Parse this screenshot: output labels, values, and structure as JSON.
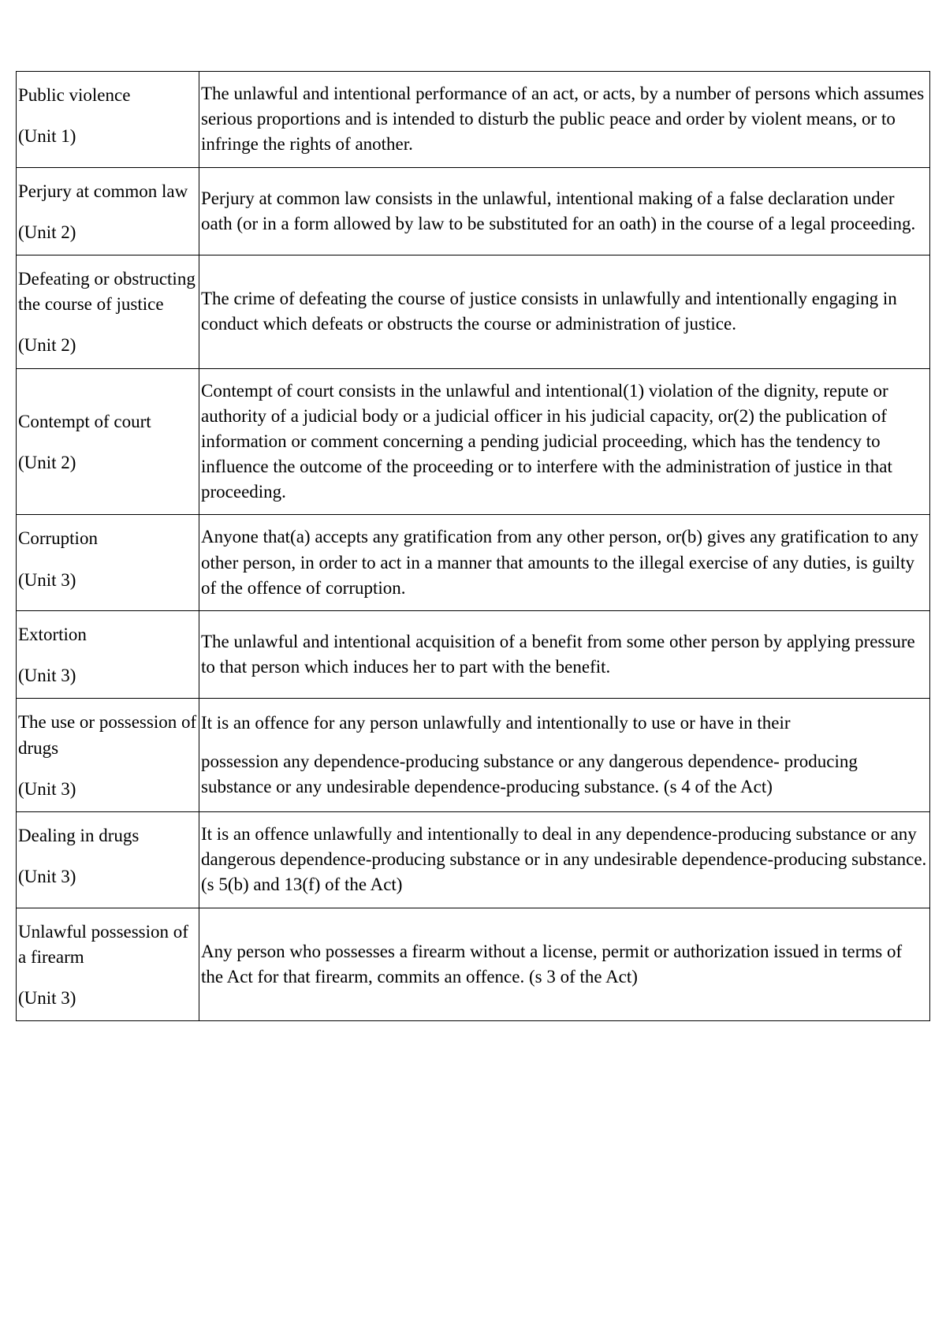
{
  "table": {
    "columns": [
      "term",
      "definition"
    ],
    "column_widths": [
      "232px",
      "auto"
    ],
    "border_color": "#000000",
    "font_family": "Times New Roman",
    "font_size": 23,
    "text_color": "#000000",
    "background_color": "#ffffff",
    "rows": [
      {
        "term_name": "Public violence",
        "term_unit": "(Unit 1)",
        "definition": "The unlawful and intentional performance of an act, or acts, by a number of persons which assumes serious proportions and is intended to disturb the public peace and order by violent means, or to infringe the rights of another."
      },
      {
        "term_name": "Perjury at common law",
        "term_unit": "(Unit 2)",
        "definition": "Perjury at common law consists in the unlawful, intentional making of a false declaration under oath (or in a form allowed by law to be substituted for an oath) in the course of a legal proceeding."
      },
      {
        "term_name": "Defeating or obstructing the course of justice",
        "term_unit": "(Unit 2)",
        "definition": "The crime of defeating the course of justice consists in unlawfully and intentionally engaging in conduct which defeats or obstructs the course or administration of justice."
      },
      {
        "term_name": "Contempt of court",
        "term_unit": "(Unit 2)",
        "definition": "Contempt of court consists in the unlawful and intentional(1) violation of the dignity, repute or authority of a judicial body or a judicial officer in his judicial capacity, or(2) the publication of information or comment concerning a pending judicial proceeding, which has the tendency to influence the outcome of the proceeding or to interfere with the administration of justice in that proceeding."
      },
      {
        "term_name": "Corruption",
        "term_unit": "(Unit 3)",
        "definition": "Anyone that(a) accepts any gratification from any other person, or(b) gives any gratification to any other person, in order to act in a manner that amounts to the illegal exercise of any duties, is guilty of the offence of corruption."
      },
      {
        "term_name": "Extortion",
        "term_unit": "(Unit 3)",
        "definition": "The unlawful and intentional acquisition of a benefit from some other person by applying pressure to that person which induces her to part with the benefit."
      },
      {
        "term_name": "The use or possession of drugs",
        "term_unit": "(Unit 3)",
        "definition_para1": "It is an offence for any person unlawfully and intentionally to use or have in their",
        "definition_para2": "possession any dependence-producing substance or any dangerous dependence- producing substance or any undesirable dependence-producing substance. (s 4 of the Act)"
      },
      {
        "term_name": "Dealing in drugs",
        "term_unit": "(Unit 3)",
        "definition": "It is an offence unlawfully and intentionally to deal in any dependence-producing substance or any dangerous dependence-producing substance or in any undesirable dependence-producing substance. (s 5(b) and 13(f) of the Act)"
      },
      {
        "term_name": "Unlawful possession of a firearm",
        "term_unit": "(Unit 3)",
        "definition": "Any person who possesses a firearm without a license, permit or authorization issued in terms of the Act for that firearm, commits an offence. (s 3 of the Act)"
      }
    ]
  }
}
